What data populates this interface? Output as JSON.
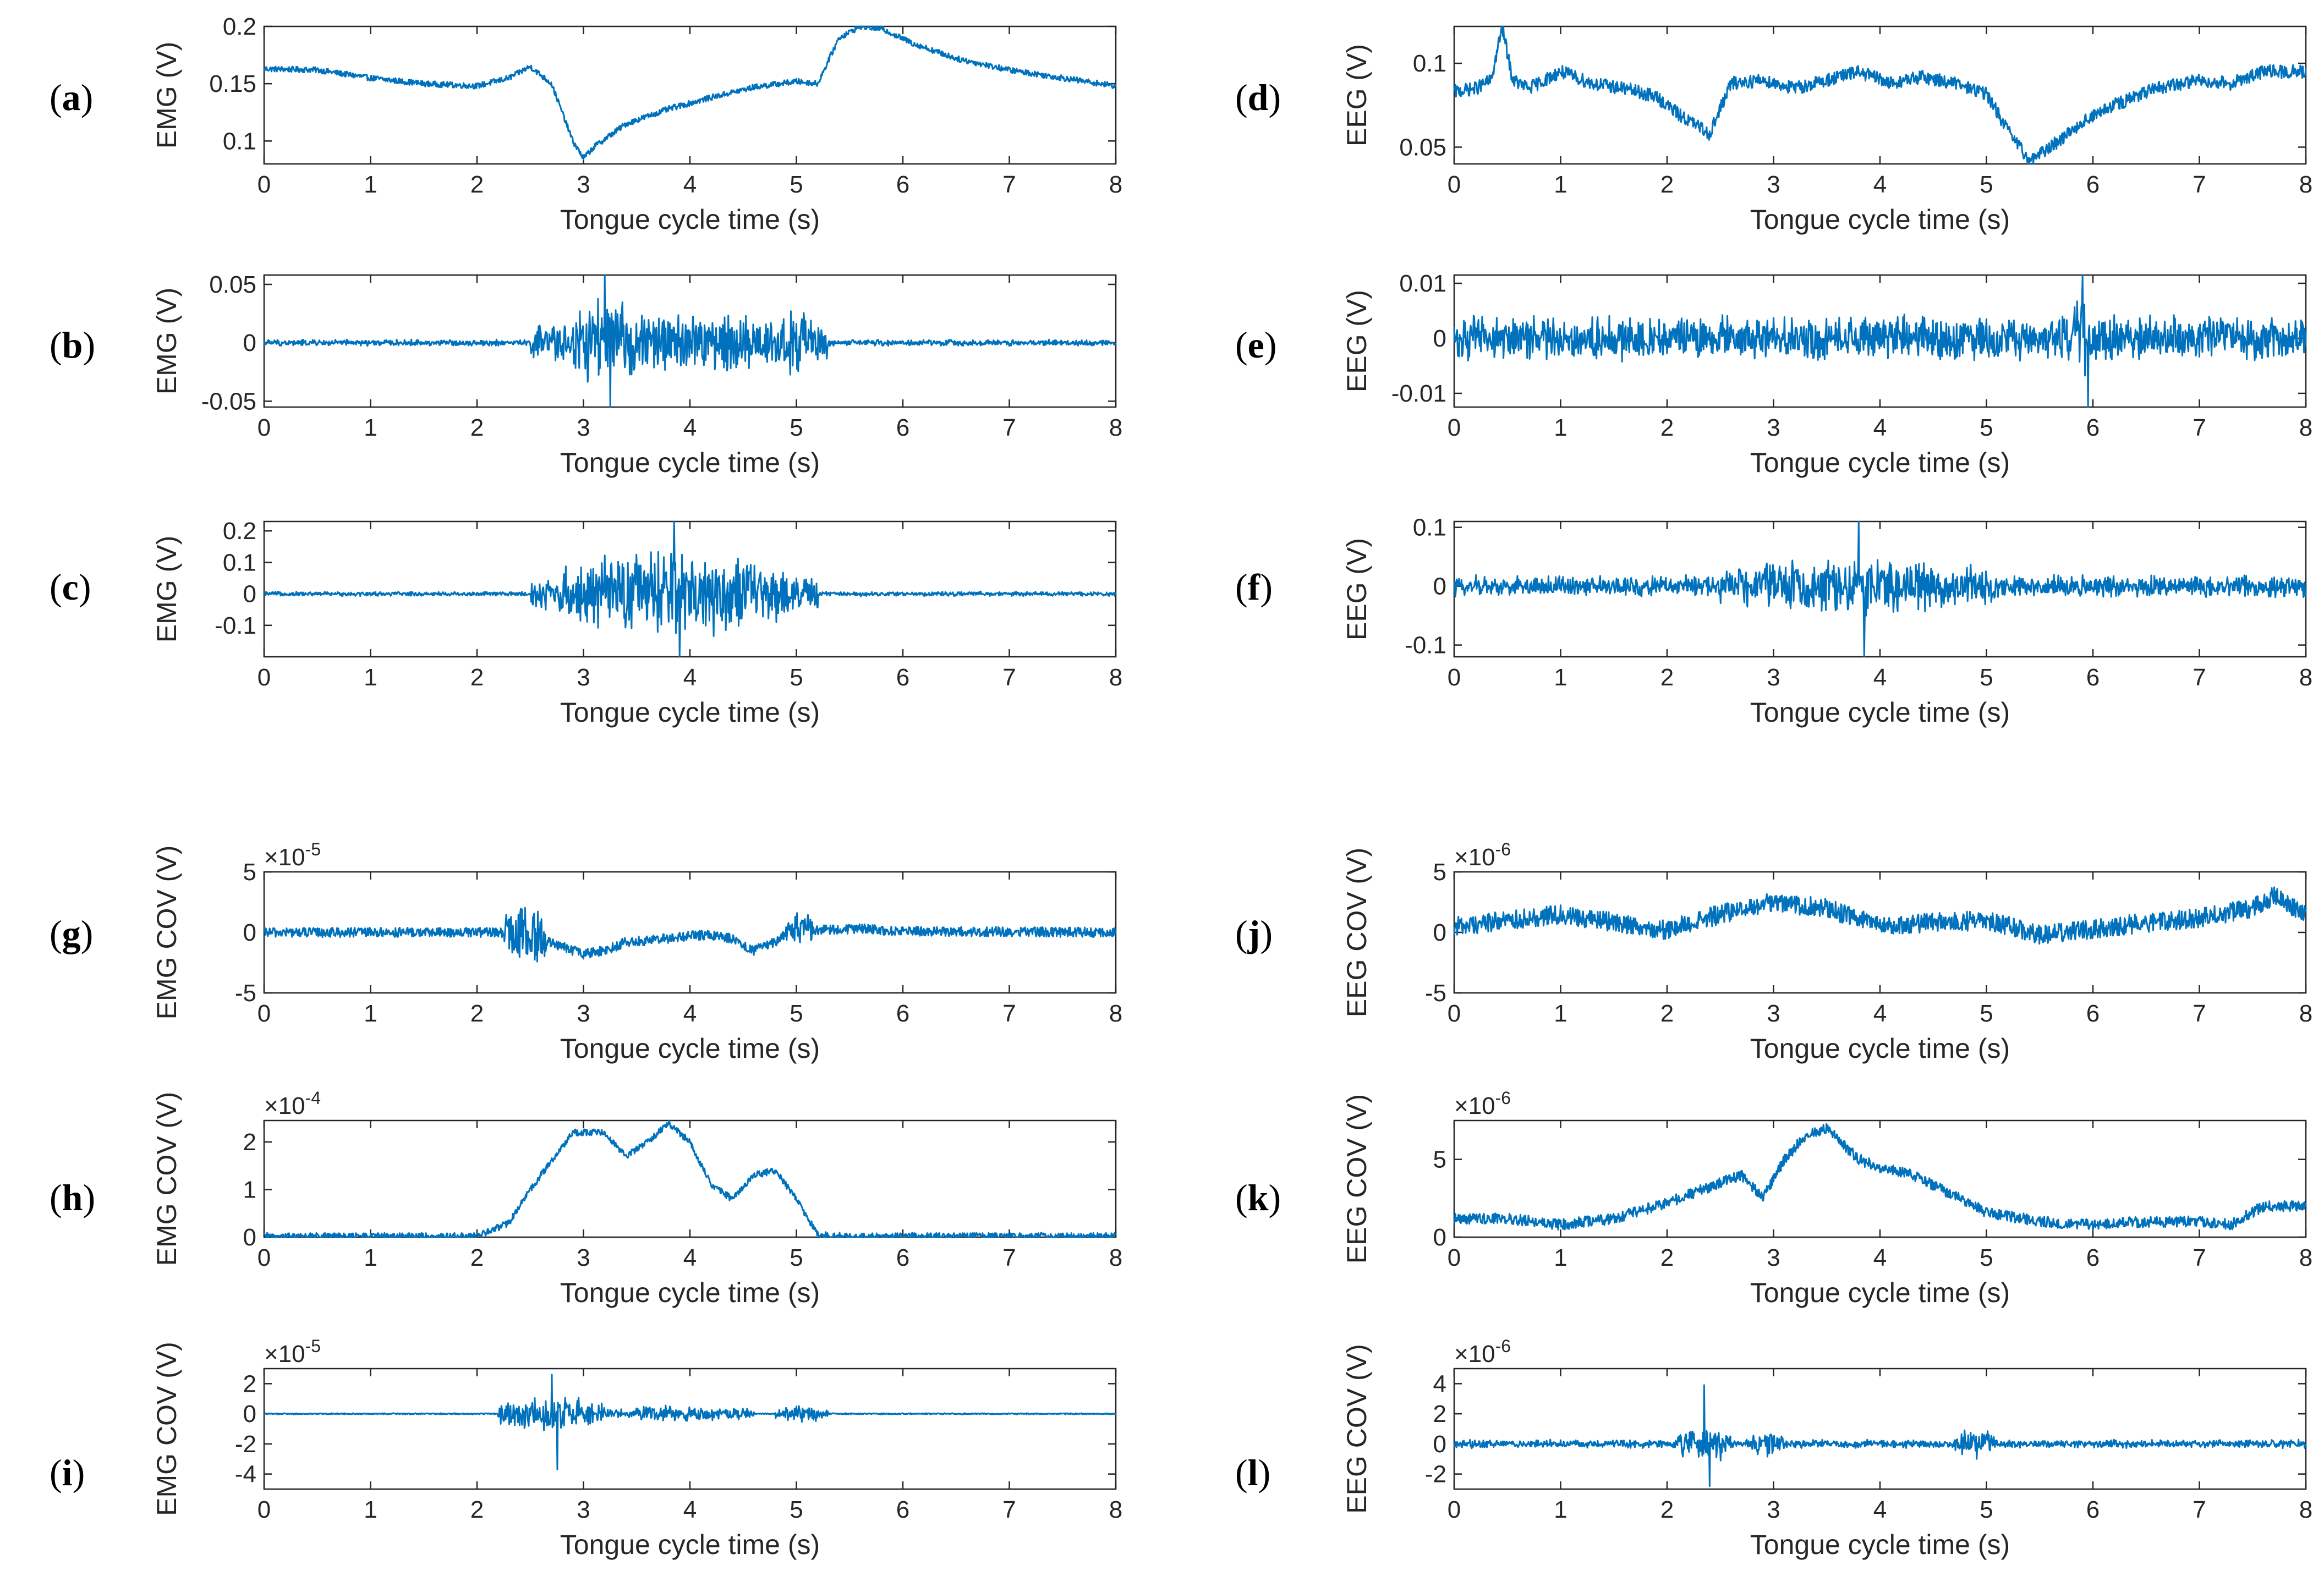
{
  "figure": {
    "line_color": "#0072BD"
  },
  "chart_data": [
    {
      "type": "line",
      "panel": "a",
      "ylabel": "EMG (V)",
      "xlabel": "Tongue cycle time (s)",
      "xlim": [
        0,
        8
      ],
      "ylim": [
        0.08,
        0.2
      ],
      "xticks": [
        0,
        1,
        2,
        3,
        4,
        5,
        6,
        7,
        8
      ],
      "yticks": [
        0.1,
        0.15,
        0.2
      ],
      "ytick_labels": [
        "0.1",
        "0.15",
        "0.2"
      ],
      "exponent": "",
      "grid": false,
      "series": [
        {
          "x": [
            0,
            0.5,
            1,
            1.5,
            2,
            2.3,
            2.5,
            2.7,
            2.9,
            3.0,
            3.1,
            3.4,
            3.8,
            4.2,
            4.6,
            5.0,
            5.2,
            5.4,
            5.6,
            5.8,
            6.1,
            6.5,
            7.0,
            7.5,
            8
          ],
          "values": [
            0.163,
            0.162,
            0.155,
            0.15,
            0.148,
            0.155,
            0.165,
            0.15,
            0.1,
            0.085,
            0.095,
            0.115,
            0.128,
            0.138,
            0.147,
            0.152,
            0.15,
            0.19,
            0.2,
            0.198,
            0.185,
            0.172,
            0.162,
            0.155,
            0.148
          ],
          "noise": 0.0025
        }
      ]
    },
    {
      "type": "line",
      "panel": "b",
      "ylabel": "EMG (V)",
      "xlabel": "Tongue cycle time (s)",
      "xlim": [
        0,
        8
      ],
      "ylim": [
        -0.055,
        0.058
      ],
      "xticks": [
        0,
        1,
        2,
        3,
        4,
        5,
        6,
        7,
        8
      ],
      "yticks": [
        -0.05,
        0,
        0.05
      ],
      "ytick_labels": [
        "-0.05",
        "0",
        "0.05"
      ],
      "exponent": "",
      "grid": false,
      "series": [
        {
          "oscillatory": true,
          "base_amp": 0.003,
          "peak": 0.058,
          "trough": -0.055,
          "bursts": [
            {
              "x0": 2.5,
              "x1": 5.3,
              "amp": 0.03
            },
            {
              "x0": 2.9,
              "x1": 3.5,
              "amp": 0.045
            },
            {
              "x0": 4.8,
              "x1": 5.2,
              "amp": 0.035
            }
          ]
        }
      ]
    },
    {
      "type": "line",
      "panel": "c",
      "ylabel": "EMG (V)",
      "xlabel": "Tongue cycle time (s)",
      "xlim": [
        0,
        8
      ],
      "ylim": [
        -0.2,
        0.23
      ],
      "xticks": [
        0,
        1,
        2,
        3,
        4,
        5,
        6,
        7,
        8
      ],
      "yticks": [
        -0.1,
        0,
        0.1,
        0.2
      ],
      "ytick_labels": [
        "-0.1",
        "0",
        "0.1",
        "0.2"
      ],
      "exponent": "",
      "grid": false,
      "series": [
        {
          "oscillatory": true,
          "base_amp": 0.008,
          "peak": 0.23,
          "trough": -0.2,
          "bursts": [
            {
              "x0": 2.5,
              "x1": 5.2,
              "amp": 0.1
            },
            {
              "x0": 2.8,
              "x1": 4.9,
              "amp": 0.16
            }
          ]
        }
      ]
    },
    {
      "type": "line",
      "panel": "d",
      "ylabel": "EEG (V)",
      "xlabel": "Tongue cycle time (s)",
      "xlim": [
        0,
        8
      ],
      "ylim": [
        0.04,
        0.122
      ],
      "xticks": [
        0,
        1,
        2,
        3,
        4,
        5,
        6,
        7,
        8
      ],
      "yticks": [
        0.05,
        0.1
      ],
      "ytick_labels": [
        "0.05",
        "0.1"
      ],
      "exponent": "",
      "grid": false,
      "series": [
        {
          "x": [
            0,
            0.2,
            0.35,
            0.45,
            0.55,
            0.7,
            1.0,
            1.3,
            1.6,
            1.9,
            2.1,
            2.4,
            2.6,
            2.9,
            3.2,
            3.5,
            3.8,
            4.1,
            4.4,
            4.7,
            5.0,
            5.2,
            5.4,
            5.6,
            5.9,
            6.2,
            6.6,
            7.0,
            7.3,
            7.6,
            8
          ],
          "values": [
            0.083,
            0.085,
            0.09,
            0.122,
            0.09,
            0.085,
            0.095,
            0.088,
            0.085,
            0.08,
            0.07,
            0.058,
            0.088,
            0.09,
            0.085,
            0.09,
            0.095,
            0.088,
            0.092,
            0.088,
            0.082,
            0.06,
            0.042,
            0.05,
            0.065,
            0.075,
            0.085,
            0.09,
            0.088,
            0.095,
            0.095
          ],
          "noise": 0.004
        }
      ]
    },
    {
      "type": "line",
      "panel": "e",
      "ylabel": "EEG (V)",
      "xlabel": "Tongue cycle time (s)",
      "xlim": [
        0,
        8
      ],
      "ylim": [
        -0.0125,
        0.0115
      ],
      "xticks": [
        0,
        1,
        2,
        3,
        4,
        5,
        6,
        7,
        8
      ],
      "yticks": [
        -0.01,
        0,
        0.01
      ],
      "ytick_labels": [
        "-0.01",
        "0",
        "0.01"
      ],
      "exponent": "",
      "grid": false,
      "series": [
        {
          "oscillatory": true,
          "base_amp": 0.0045,
          "peak": 0.0115,
          "trough": -0.0125,
          "bursts": [
            {
              "x0": 5.8,
              "x1": 6.0,
              "amp": 0.009
            }
          ]
        }
      ]
    },
    {
      "type": "line",
      "panel": "f",
      "ylabel": "EEG (V)",
      "xlabel": "Tongue cycle time (s)",
      "xlim": [
        0,
        8
      ],
      "ylim": [
        -0.12,
        0.11
      ],
      "xticks": [
        0,
        1,
        2,
        3,
        4,
        5,
        6,
        7,
        8
      ],
      "yticks": [
        -0.1,
        0,
        0.1
      ],
      "ytick_labels": [
        "-0.1",
        "0",
        "0.1"
      ],
      "exponent": "",
      "grid": false,
      "series": [
        {
          "oscillatory": true,
          "base_amp": 0.02,
          "peak": 0.11,
          "trough": -0.12,
          "bursts": [
            {
              "x0": 2.5,
              "x1": 5.1,
              "amp": 0.055
            }
          ]
        }
      ]
    },
    {
      "type": "line",
      "panel": "g",
      "ylabel": "EMG COV (V)",
      "xlabel": "Tongue cycle time (s)",
      "xlim": [
        0,
        8
      ],
      "ylim": [
        -5,
        5
      ],
      "xticks": [
        0,
        1,
        2,
        3,
        4,
        5,
        6,
        7,
        8
      ],
      "yticks": [
        -5,
        0,
        5
      ],
      "ytick_labels": [
        "-5",
        "0",
        "5"
      ],
      "exponent": "×10",
      "exponent_power": "-5",
      "grid": false,
      "series": [
        {
          "x": [
            0,
            2.2,
            2.4,
            2.6,
            2.8,
            3.0,
            3.2,
            3.4,
            3.8,
            4.0,
            4.2,
            4.4,
            4.6,
            4.8,
            5.0,
            5.2,
            5.6,
            6.0,
            8
          ],
          "values": [
            0,
            0,
            0,
            -0.5,
            -1.2,
            -1.8,
            -1.5,
            -0.8,
            -0.5,
            -0.3,
            -0.2,
            -0.5,
            -1.5,
            -0.8,
            0.5,
            0.2,
            0.3,
            0.1,
            0
          ],
          "noise": 0.4,
          "bursts": [
            {
              "x0": 2.25,
              "x1": 2.7,
              "amp": 2.2
            },
            {
              "x0": 4.9,
              "x1": 5.15,
              "amp": 1
            }
          ]
        }
      ]
    },
    {
      "type": "line",
      "panel": "h",
      "ylabel": "EMG COV (V)",
      "xlabel": "Tongue cycle time (s)",
      "xlim": [
        0,
        8
      ],
      "ylim": [
        0,
        2.45
      ],
      "xticks": [
        0,
        1,
        2,
        3,
        4,
        5,
        6,
        7,
        8
      ],
      "yticks": [
        0,
        1,
        2
      ],
      "ytick_labels": [
        "0",
        "1",
        "2"
      ],
      "exponent": "×10",
      "exponent_power": "-4",
      "grid": false,
      "series": [
        {
          "x": [
            0,
            2.0,
            2.3,
            2.5,
            2.7,
            2.9,
            3.2,
            3.4,
            3.6,
            3.8,
            4.0,
            4.2,
            4.4,
            4.6,
            4.8,
            5.0,
            5.2,
            5.5,
            8
          ],
          "values": [
            0.02,
            0.02,
            0.3,
            1.0,
            1.6,
            2.2,
            2.2,
            1.7,
            2.0,
            2.4,
            2.0,
            1.1,
            0.8,
            1.3,
            1.4,
            0.8,
            0.05,
            0.02,
            0.02
          ],
          "noise": 0.07
        }
      ]
    },
    {
      "type": "line",
      "panel": "i",
      "ylabel": "EMG COV (V)",
      "xlabel": "Tongue cycle time (s)",
      "xlim": [
        0,
        8
      ],
      "ylim": [
        -5,
        3
      ],
      "xticks": [
        0,
        1,
        2,
        3,
        4,
        5,
        6,
        7,
        8
      ],
      "yticks": [
        -4,
        -2,
        0,
        2
      ],
      "ytick_labels": [
        "-4",
        "-2",
        "0",
        "2"
      ],
      "exponent": "×10",
      "exponent_power": "-5",
      "grid": false,
      "series": [
        {
          "oscillatory": true,
          "base_amp": 0.05,
          "peak": 2.6,
          "trough": -3.7,
          "bursts": [
            {
              "x0": 2.2,
              "x1": 3.2,
              "amp": 1.3
            },
            {
              "x0": 3.2,
              "x1": 4.6,
              "amp": 0.6
            },
            {
              "x0": 4.8,
              "x1": 5.3,
              "amp": 0.6
            }
          ]
        }
      ]
    },
    {
      "type": "line",
      "panel": "j",
      "ylabel": "EEG COV (V)",
      "xlabel": "Tongue cycle time (s)",
      "xlim": [
        0,
        8
      ],
      "ylim": [
        -5,
        5
      ],
      "xticks": [
        0,
        1,
        2,
        3,
        4,
        5,
        6,
        7,
        8
      ],
      "yticks": [
        -5,
        0,
        5
      ],
      "ytick_labels": [
        "-5",
        "0",
        "5"
      ],
      "exponent": "×10",
      "exponent_power": "-6",
      "grid": false,
      "series": [
        {
          "x": [
            0,
            1,
            2,
            2.5,
            3,
            3.5,
            4,
            4.5,
            5,
            5.5,
            6,
            6.5,
            7,
            7.5,
            7.7,
            8
          ],
          "values": [
            0.5,
            1.5,
            0.2,
            1.5,
            2.5,
            2.0,
            0.5,
            0.8,
            1.0,
            -0.2,
            0.3,
            0.8,
            1.2,
            2.0,
            3.0,
            1.5
          ],
          "noise": 0.8
        }
      ]
    },
    {
      "type": "line",
      "panel": "k",
      "ylabel": "EEG COV (V)",
      "xlabel": "Tongue cycle time (s)",
      "xlim": [
        0,
        8
      ],
      "ylim": [
        0,
        7.5
      ],
      "xticks": [
        0,
        1,
        2,
        3,
        4,
        5,
        6,
        7,
        8
      ],
      "yticks": [
        0,
        5
      ],
      "ytick_labels": [
        "0",
        "5"
      ],
      "exponent": "×10",
      "exponent_power": "-6",
      "grid": false,
      "series": [
        {
          "x": [
            0,
            0.5,
            1.0,
            1.5,
            2.0,
            2.5,
            2.7,
            2.9,
            3.1,
            3.3,
            3.5,
            3.8,
            4.0,
            4.3,
            4.6,
            5.0,
            5.5,
            6.0,
            6.5,
            7.0,
            7.3,
            7.6,
            8
          ],
          "values": [
            1.2,
            1.2,
            0.8,
            1.2,
            2.2,
            3.5,
            4.0,
            2.5,
            5.0,
            6.5,
            7.0,
            5.0,
            4.5,
            4.0,
            3.0,
            1.6,
            1.0,
            0.8,
            1.0,
            1.0,
            0.8,
            2.0,
            2.0
          ],
          "noise": 0.35
        }
      ]
    },
    {
      "type": "line",
      "panel": "l",
      "ylabel": "EEG COV (V)",
      "xlabel": "Tongue cycle time (s)",
      "xlim": [
        0,
        8
      ],
      "ylim": [
        -3,
        5
      ],
      "xticks": [
        0,
        1,
        2,
        3,
        4,
        5,
        6,
        7,
        8
      ],
      "yticks": [
        -2,
        0,
        2,
        4
      ],
      "ytick_labels": [
        "-2",
        "0",
        "2",
        "4"
      ],
      "exponent": "×10",
      "exponent_power": "-6",
      "grid": false,
      "series": [
        {
          "oscillatory": true,
          "base_amp": 0.3,
          "peak": 3.9,
          "trough": -2.8,
          "bursts": [
            {
              "x0": 2.1,
              "x1": 2.6,
              "amp": 1.5
            },
            {
              "x0": 2.8,
              "x1": 3.1,
              "amp": 1.2
            },
            {
              "x0": 4.7,
              "x1": 5.1,
              "amp": 1.2
            }
          ]
        }
      ]
    }
  ],
  "panels": [
    {
      "letter": "a"
    },
    {
      "letter": "b"
    },
    {
      "letter": "c"
    },
    {
      "letter": "d"
    },
    {
      "letter": "e"
    },
    {
      "letter": "f"
    },
    {
      "letter": "g"
    },
    {
      "letter": "h"
    },
    {
      "letter": "i"
    },
    {
      "letter": "j"
    },
    {
      "letter": "k"
    },
    {
      "letter": "l"
    }
  ]
}
